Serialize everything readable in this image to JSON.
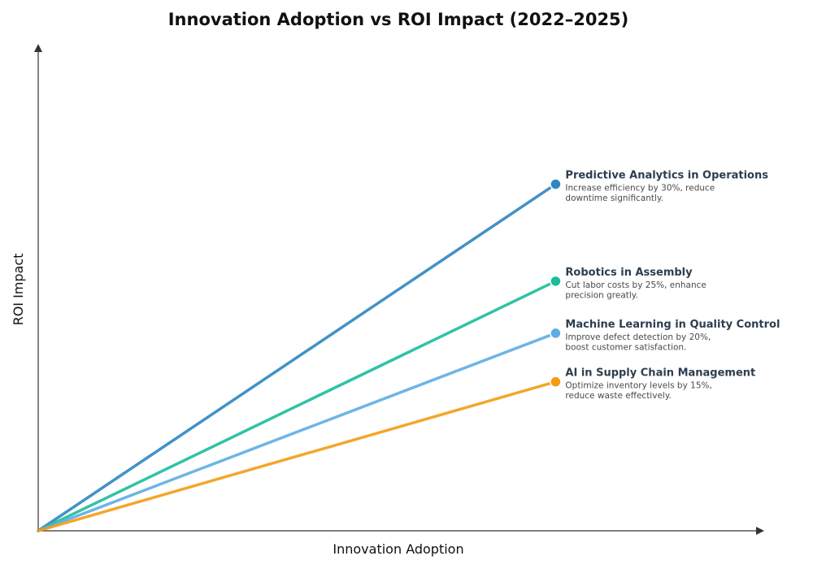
{
  "chart_data": {
    "type": "line",
    "title": "Innovation Adoption vs ROI Impact (2022–2025)",
    "xlabel": "Innovation Adoption",
    "ylabel": "ROI Impact",
    "xlim": [
      0,
      1.4
    ],
    "ylim": [
      0,
      1.4
    ],
    "grid": false,
    "series": [
      {
        "name": "Predictive Analytics in Operations",
        "description": [
          "Increase efficiency by 30%, reduce",
          "downtime significantly."
        ],
        "color": "#2e86c1",
        "x": [
          0,
          1
        ],
        "y": [
          0,
          1
        ]
      },
      {
        "name": "Robotics in Assembly",
        "description": [
          "Cut labor costs by 25%, enhance",
          "precision greatly."
        ],
        "color": "#1abc9c",
        "x": [
          0,
          1
        ],
        "y": [
          0,
          0.72
        ]
      },
      {
        "name": "Machine Learning in Quality Control",
        "description": [
          "Improve defect detection by 20%,",
          "boost customer satisfaction."
        ],
        "color": "#5dade2",
        "x": [
          0,
          1
        ],
        "y": [
          0,
          0.57
        ]
      },
      {
        "name": "AI in Supply Chain Management",
        "description": [
          "Optimize inventory levels by 15%,",
          "reduce waste effectively."
        ],
        "color": "#f39c12",
        "x": [
          0,
          1
        ],
        "y": [
          0,
          0.43
        ]
      }
    ]
  }
}
